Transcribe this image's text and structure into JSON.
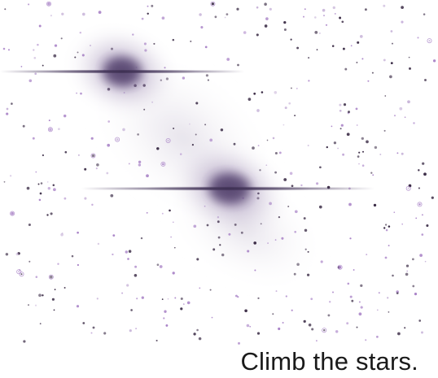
{
  "scene": {
    "caption": "Climb the stars.",
    "colors": {
      "background": "#ffffff",
      "star_dark": "#3a2b45",
      "star_purple": "#a983c7",
      "nebula_core": "#6c5a84",
      "nebula_glow": "#8e78a8",
      "caption_text": "#1a1a1a"
    }
  }
}
